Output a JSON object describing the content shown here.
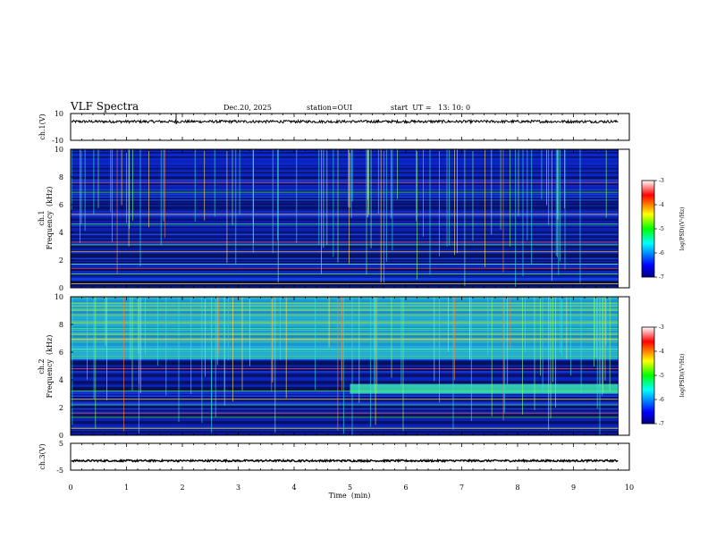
{
  "header": {
    "title": "VLF Spectra",
    "date": "Dec.20, 2025",
    "station": "station=OUI",
    "start_ut": "start  UT =   13: 10: 0"
  },
  "chart_data": [
    {
      "type": "line",
      "name": "ch1-waveform",
      "ylabel": "ch.1(V)",
      "ylim": [
        -10,
        10
      ],
      "yticks": [
        "10",
        "-10"
      ],
      "baseline": 4,
      "noise_amplitude": 1
    },
    {
      "type": "heatmap",
      "name": "ch1-spectrogram",
      "ylabel_line1": "ch.1",
      "ylabel_line2": "Frequency  (kHz)",
      "ylim": [
        0,
        10
      ],
      "yticks": [
        "0",
        "2",
        "4",
        "6",
        "8",
        "10"
      ],
      "data_end_min": 9.8,
      "horizontal_bands_khz": [
        0.3,
        1.0,
        1.4,
        1.7,
        2.6,
        3.1,
        3.3,
        4.6,
        5.3,
        6.9,
        7.6
      ],
      "colorbar": {
        "label": "log(PSD)(V²/Hz)",
        "ticks": [
          "-3",
          "-4",
          "-5",
          "-6",
          "-7"
        ],
        "range": [
          -7,
          -3
        ]
      }
    },
    {
      "type": "heatmap",
      "name": "ch2-spectrogram",
      "ylabel_line1": "ch.2",
      "ylabel_line2": "Frequency  (kHz)",
      "ylim": [
        0,
        10
      ],
      "yticks": [
        "0",
        "2",
        "4",
        "6",
        "8",
        "10"
      ],
      "data_end_min": 9.8,
      "enhanced_band": {
        "start_min": 5.0,
        "low_khz": 3.0,
        "high_khz": 3.7
      },
      "horizontal_bands_khz": [
        0.5,
        1.3,
        1.6,
        2.2,
        2.6,
        3.2,
        4.8,
        6.2,
        6.9,
        7.7
      ],
      "colorbar": {
        "label": "log(PSD)(V²/Hz)",
        "ticks": [
          "-3",
          "-4",
          "-5",
          "-6",
          "-7"
        ],
        "range": [
          -7,
          -3
        ]
      }
    },
    {
      "type": "line",
      "name": "ch3-waveform",
      "ylabel": "ch.3(V)",
      "ylim": [
        -5,
        5
      ],
      "yticks": [
        "5",
        "-5"
      ],
      "baseline": -1.5,
      "noise_amplitude": 0.35
    }
  ],
  "x_axis": {
    "label": "Time  (min)",
    "xlim": [
      0,
      10
    ],
    "ticks": [
      "0",
      "1",
      "2",
      "3",
      "4",
      "5",
      "6",
      "7",
      "8",
      "9",
      "10"
    ]
  }
}
